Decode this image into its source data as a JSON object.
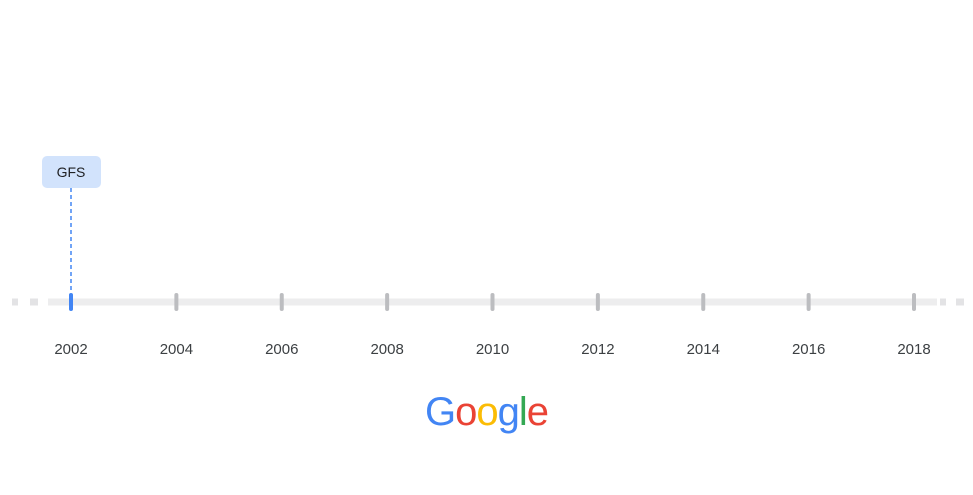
{
  "timeline": {
    "years": [
      "2002",
      "2004",
      "2006",
      "2008",
      "2010",
      "2012",
      "2014",
      "2016",
      "2018"
    ],
    "events": [
      {
        "label": "GFS",
        "year": "2002"
      }
    ],
    "active_year": "2002"
  },
  "colors": {
    "track": "#ededee",
    "track_dashes": "#e3e3e5",
    "tick": "#bcbdc0",
    "active_tick": "#4285f4",
    "event_box": "#d2e3fc",
    "event_line": "#4285f4"
  },
  "logo": {
    "text": "Google",
    "letter_colors": [
      "#4285F4",
      "#EA4335",
      "#FBBC05",
      "#4285F4",
      "#34A853",
      "#EA4335"
    ]
  }
}
